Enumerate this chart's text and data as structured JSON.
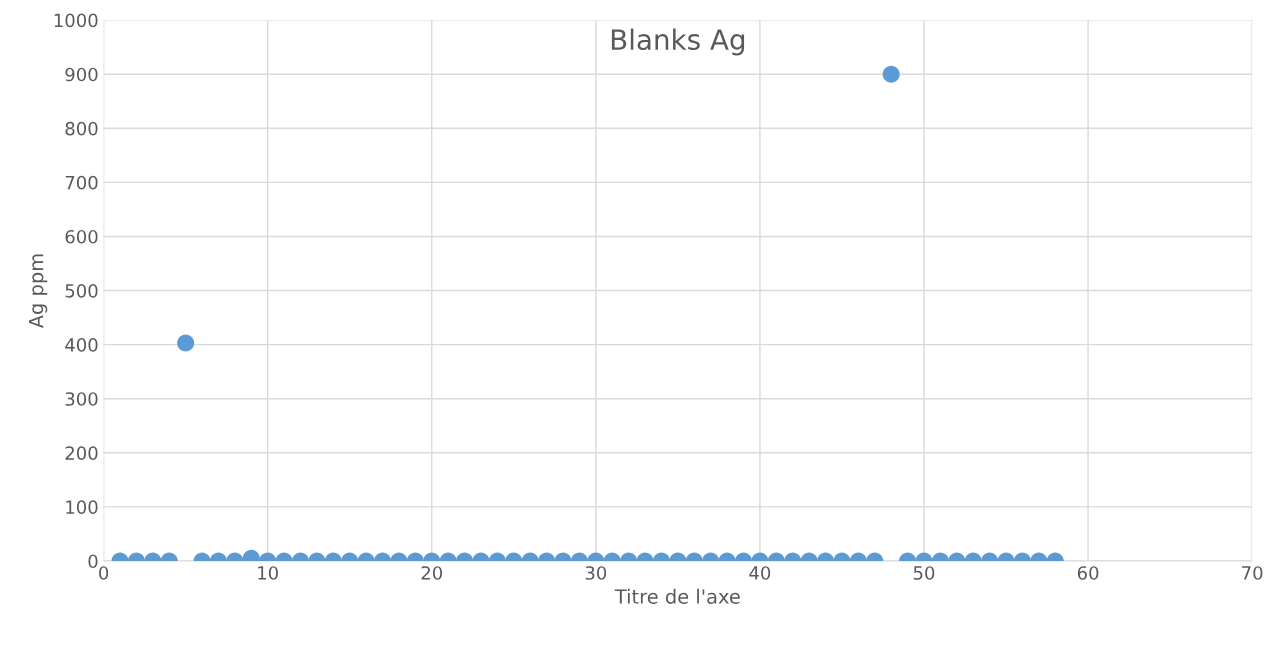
{
  "chart_data": {
    "type": "scatter",
    "title": "Blanks Ag",
    "xlabel": "Titre de l'axe",
    "ylabel": "Ag ppm",
    "x": [
      1,
      2,
      3,
      4,
      5,
      6,
      7,
      8,
      9,
      10,
      11,
      12,
      13,
      14,
      15,
      16,
      17,
      18,
      19,
      20,
      21,
      22,
      23,
      24,
      25,
      26,
      27,
      28,
      29,
      30,
      31,
      32,
      33,
      34,
      35,
      36,
      37,
      38,
      39,
      40,
      41,
      42,
      43,
      44,
      45,
      46,
      47,
      48,
      49,
      50,
      51,
      52,
      53,
      54,
      55,
      56,
      57,
      58
    ],
    "series": [
      {
        "color": "#5b9bd5",
        "values": [
          0,
          0,
          0,
          0,
          403,
          0,
          0,
          0,
          5,
          0,
          0,
          0,
          0,
          0,
          0,
          0,
          0,
          0,
          0,
          0,
          0,
          0,
          0,
          0,
          0,
          0,
          0,
          0,
          0,
          0,
          0,
          0,
          0,
          0,
          0,
          0,
          0,
          0,
          0,
          0,
          0,
          0,
          0,
          0,
          0,
          0,
          0,
          900,
          0,
          0,
          0,
          0,
          0,
          0,
          0,
          0,
          0,
          0
        ]
      }
    ],
    "xlim": [
      0,
      70
    ],
    "xticks": [
      0,
      10,
      20,
      30,
      40,
      50,
      60,
      70
    ],
    "ylim": [
      0,
      1000
    ],
    "yticks": [
      0,
      100,
      200,
      300,
      400,
      500,
      600,
      700,
      800,
      900,
      1000
    ],
    "grid": true,
    "marker": "circle",
    "legend": false
  }
}
